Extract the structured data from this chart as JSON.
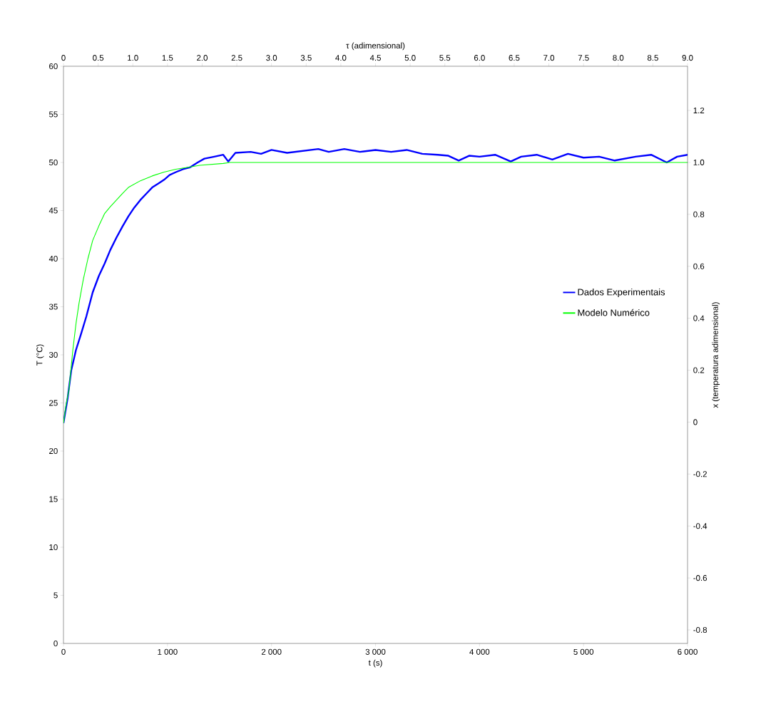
{
  "chart_data": {
    "type": "line",
    "xlabel": "t (s)",
    "ylabel": "T (°C)",
    "x2label": "τ (adimensional)",
    "y2label": "x (temperatura adimensional)",
    "xlim": [
      0,
      6000
    ],
    "ylim": [
      0,
      60
    ],
    "x2lim": [
      0,
      9
    ],
    "y2lim": [
      -0.852,
      1.37
    ],
    "xticks": [
      0,
      {
        "value": 1000,
        "label": "1 000"
      },
      {
        "value": 2000,
        "label": "2 000"
      },
      {
        "value": 3000,
        "label": "3 000"
      },
      {
        "value": 4000,
        "label": "4 000"
      },
      {
        "value": 5000,
        "label": "5 000"
      },
      {
        "value": 6000,
        "label": "6 000"
      }
    ],
    "yticks": [
      0,
      5,
      10,
      15,
      20,
      25,
      30,
      35,
      40,
      45,
      50,
      55,
      60
    ],
    "x2ticks": [
      0,
      0.5,
      {
        "value": 1,
        "label": "1.0"
      },
      1.5,
      {
        "value": 2,
        "label": "2.0"
      },
      2.5,
      {
        "value": 3,
        "label": "3.0"
      },
      3.5,
      {
        "value": 4,
        "label": "4.0"
      },
      4.5,
      {
        "value": 5,
        "label": "5.0"
      },
      5.5,
      {
        "value": 6,
        "label": "6.0"
      },
      6.5,
      {
        "value": 7,
        "label": "7.0"
      },
      7.5,
      {
        "value": 8,
        "label": "8.0"
      },
      8.5,
      {
        "value": 9,
        "label": "9.0"
      }
    ],
    "y2ticks": [
      -0.8,
      -0.6,
      -0.4,
      -0.2,
      0,
      0.2,
      0.4,
      0.6,
      0.8,
      {
        "value": 1,
        "label": "1.0"
      },
      1.2
    ],
    "legend": "right",
    "marker": "none",
    "grid": false,
    "series": [
      {
        "name": "Dados Experimentais",
        "color": "#0000ff",
        "x": [
          0,
          40,
          75,
          120,
          167,
          220,
          281,
          340,
          396,
          450,
          510,
          570,
          624,
          680,
          739,
          800,
          853,
          910,
          967,
          1020,
          1081,
          1150,
          1218,
          1290,
          1355,
          1450,
          1536,
          1584,
          1653,
          1800,
          1900,
          2000,
          2150,
          2300,
          2450,
          2550,
          2700,
          2850,
          3000,
          3150,
          3300,
          3450,
          3600,
          3700,
          3800,
          3900,
          4000,
          4150,
          4300,
          4400,
          4550,
          4700,
          4850,
          5000,
          5150,
          5300,
          5500,
          5650,
          5800,
          5900,
          6000
        ],
        "values": [
          22.9,
          25.5,
          28.4,
          30.5,
          32.1,
          34,
          36.5,
          38.2,
          39.5,
          40.9,
          42.2,
          43.4,
          44.4,
          45.3,
          46.1,
          46.8,
          47.4,
          47.8,
          48.2,
          48.7,
          49.0,
          49.3,
          49.5,
          50.0,
          50.4,
          50.6,
          50.8,
          50.1,
          51.0,
          51.1,
          50.9,
          51.3,
          51.0,
          51.2,
          51.4,
          51.1,
          51.4,
          51.1,
          51.3,
          51.1,
          51.3,
          50.9,
          50.8,
          50.7,
          50.2,
          50.7,
          50.6,
          50.8,
          50.1,
          50.6,
          50.8,
          50.3,
          50.9,
          50.5,
          50.6,
          50.2,
          50.6,
          50.8,
          50.0,
          50.6,
          50.8
        ]
      },
      {
        "name": "Modelo Numérico",
        "color": "#00ff00",
        "x": [
          0,
          25,
          53,
          90,
          121,
          150,
          190,
          235,
          281,
          340,
          396,
          450,
          510,
          570,
          624,
          740,
          853,
          967,
          1081,
          1200,
          1310,
          1536,
          1600,
          6000
        ],
        "values": [
          22.9,
          24.8,
          26.4,
          30.5,
          33.3,
          35.4,
          37.8,
          40,
          41.9,
          43.4,
          44.7,
          45.4,
          46.1,
          46.8,
          47.4,
          48.1,
          48.6,
          49.0,
          49.3,
          49.5,
          49.7,
          49.9,
          50.0,
          50.0
        ]
      }
    ]
  }
}
